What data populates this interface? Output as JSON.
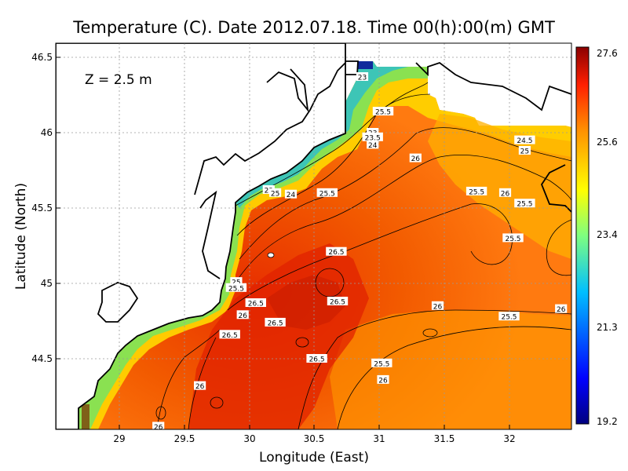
{
  "title": "Temperature (C). Date 2012.07.18. Time 00(h):00(m) GMT",
  "depth_label": "Z = 2.5 m",
  "xlabel": "Longitude (East)",
  "ylabel": "Latitude (North)",
  "colors": {
    "land": "#ffffff",
    "coastline": "#000000",
    "grid": "#9a9a9a"
  },
  "map": {
    "x_ticks": [
      "29",
      "29.5",
      "30",
      "30.5",
      "31",
      "31.5",
      "32"
    ],
    "y_ticks": [
      "46.5",
      "46",
      "45.5",
      "45",
      "44.5"
    ]
  },
  "colorbar": {
    "ticks": [
      "27.6",
      "25.6",
      "23.4",
      "21.3",
      "19.2"
    ]
  },
  "contour_labels": [
    {
      "text": "23",
      "lon": 30.87,
      "lat": 46.37
    },
    {
      "text": "25.5",
      "lon": 31.03,
      "lat": 46.14
    },
    {
      "text": "23",
      "lon": 30.95,
      "lat": 46.0
    },
    {
      "text": "23.5",
      "lon": 30.95,
      "lat": 45.97
    },
    {
      "text": "24",
      "lon": 30.95,
      "lat": 45.92
    },
    {
      "text": "24.5",
      "lon": 32.12,
      "lat": 45.95
    },
    {
      "text": "25",
      "lon": 32.12,
      "lat": 45.88
    },
    {
      "text": "26",
      "lon": 31.28,
      "lat": 45.83
    },
    {
      "text": "23",
      "lon": 30.15,
      "lat": 45.62
    },
    {
      "text": "25",
      "lon": 30.2,
      "lat": 45.6
    },
    {
      "text": "24",
      "lon": 30.32,
      "lat": 45.59
    },
    {
      "text": "25.5",
      "lon": 30.6,
      "lat": 45.6
    },
    {
      "text": "25.5",
      "lon": 31.75,
      "lat": 45.61
    },
    {
      "text": "26",
      "lon": 31.97,
      "lat": 45.6
    },
    {
      "text": "25.5",
      "lon": 32.12,
      "lat": 45.53
    },
    {
      "text": "25.5",
      "lon": 32.03,
      "lat": 45.3
    },
    {
      "text": "26.5",
      "lon": 30.67,
      "lat": 45.21
    },
    {
      "text": "25",
      "lon": 29.9,
      "lat": 45.01
    },
    {
      "text": "25.5",
      "lon": 29.9,
      "lat": 44.97
    },
    {
      "text": "26.5",
      "lon": 30.05,
      "lat": 44.87
    },
    {
      "text": "26.5",
      "lon": 30.68,
      "lat": 44.88
    },
    {
      "text": "26",
      "lon": 31.45,
      "lat": 44.85
    },
    {
      "text": "26",
      "lon": 32.4,
      "lat": 44.83
    },
    {
      "text": "26",
      "lon": 29.95,
      "lat": 44.79
    },
    {
      "text": "25.5",
      "lon": 32.0,
      "lat": 44.78
    },
    {
      "text": "26.5",
      "lon": 30.2,
      "lat": 44.74
    },
    {
      "text": "26.5",
      "lon": 29.85,
      "lat": 44.66
    },
    {
      "text": "26.5",
      "lon": 30.52,
      "lat": 44.5
    },
    {
      "text": "25.5",
      "lon": 31.02,
      "lat": 44.47
    },
    {
      "text": "26",
      "lon": 31.03,
      "lat": 44.36
    },
    {
      "text": "26",
      "lon": 29.62,
      "lat": 44.32
    },
    {
      "text": "26",
      "lon": 29.3,
      "lat": 44.05
    }
  ]
}
